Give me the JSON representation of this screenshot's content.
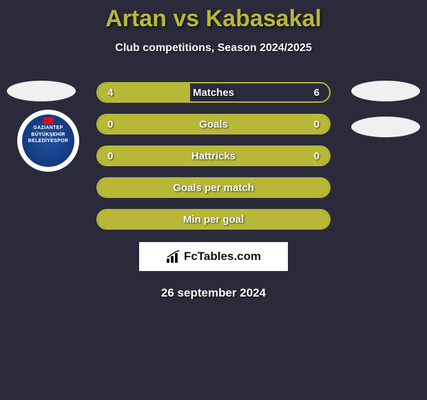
{
  "title": "Artan vs Kabasakal",
  "subtitle": "Club competitions, Season 2024/2025",
  "club_badge": {
    "line1": "GAZIANTEP",
    "line2": "BÜYÜKŞEHİR",
    "line3": "BELEDİYESPOR",
    "bg_color": "#2050a0"
  },
  "bars": [
    {
      "label": "Matches",
      "left_value": "4",
      "right_value": "6",
      "left_fill_pct": 40,
      "fill_color": "#b8b838",
      "full": false
    },
    {
      "label": "Goals",
      "left_value": "0",
      "right_value": "0",
      "left_fill_pct": 100,
      "fill_color": "#b8b838",
      "full": true
    },
    {
      "label": "Hattricks",
      "left_value": "0",
      "right_value": "0",
      "left_fill_pct": 100,
      "fill_color": "#b8b838",
      "full": true
    },
    {
      "label": "Goals per match",
      "left_value": "",
      "right_value": "",
      "left_fill_pct": 100,
      "fill_color": "#b8b838",
      "full": true
    },
    {
      "label": "Min per goal",
      "left_value": "",
      "right_value": "",
      "left_fill_pct": 100,
      "fill_color": "#b8b838",
      "full": true
    }
  ],
  "brand": "FcTables.com",
  "date": "26 september 2024",
  "colors": {
    "background": "#2a2a3a",
    "accent": "#b8b838",
    "text_light": "#ffffff",
    "badge_bg": "#f0f0f0"
  }
}
